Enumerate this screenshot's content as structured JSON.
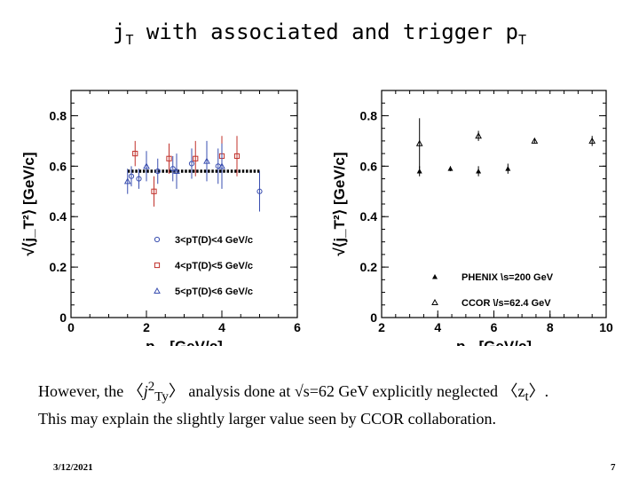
{
  "slide": {
    "title_pre": "j",
    "title_sub": "T",
    "title_mid": " with associated and trigger p",
    "title_sub2": "T",
    "caption": {
      "l1_a": "However, the ",
      "l1_open": "〈",
      "l1_j": "j",
      "l1_sup": "2",
      "l1_sub": "Ty",
      "l1_close": "〉",
      "l1_b": " analysis  done at √s=62 GeV explicitly neglected ",
      "l1_open2": "〈",
      "l1_z": "z",
      "l1_zsub": "t",
      "l1_close2": "〉.",
      "l2": "This may explain the slightly larger value seen by CCOR collaboration."
    },
    "date": "3/12/2021",
    "page": "7"
  },
  "chart_data": [
    {
      "type": "scatter",
      "xlabel": "p_Ta [GeV/c]",
      "ylabel": "√⟨j_T²⟩ [GeV/c]",
      "xlim": [
        0,
        6
      ],
      "ylim": [
        0,
        0.9
      ],
      "xticks": [
        "0",
        "2",
        "4",
        "6"
      ],
      "yticks": [
        "0",
        "0.2",
        "0.4",
        "0.6",
        "0.8"
      ],
      "legend_position": "bottom-right",
      "series": [
        {
          "name": "3<pT(D)<4 GeV/c",
          "marker": "circle",
          "color": "#3a4fb0",
          "points": [
            [
              1.6,
              0.56
            ],
            [
              1.8,
              0.55
            ],
            [
              2.3,
              0.58
            ],
            [
              2.7,
              0.59
            ],
            [
              3.2,
              0.61
            ],
            [
              3.9,
              0.6
            ],
            [
              5.0,
              0.5
            ]
          ],
          "err": [
            0.04,
            0.04,
            0.05,
            0.05,
            0.06,
            0.07,
            0.08
          ]
        },
        {
          "name": "4<pT(D)<5 GeV/c",
          "marker": "square",
          "color": "#c0302a",
          "points": [
            [
              1.7,
              0.65
            ],
            [
              2.2,
              0.5
            ],
            [
              2.6,
              0.63
            ],
            [
              3.3,
              0.63
            ],
            [
              4.0,
              0.64
            ],
            [
              4.4,
              0.64
            ]
          ],
          "err": [
            0.05,
            0.06,
            0.06,
            0.07,
            0.08,
            0.08
          ]
        },
        {
          "name": "5<pT(D)<6 GeV/c",
          "marker": "triangle",
          "color": "#3a4fb0",
          "points": [
            [
              1.5,
              0.54
            ],
            [
              2.0,
              0.6
            ],
            [
              2.8,
              0.58
            ],
            [
              3.6,
              0.62
            ],
            [
              4.0,
              0.6
            ]
          ],
          "err": [
            0.05,
            0.06,
            0.07,
            0.08,
            0.09
          ]
        }
      ],
      "fit": {
        "x": [
          1.5,
          5.0
        ],
        "y": 0.58
      }
    },
    {
      "type": "scatter",
      "xlabel": "p_Tt [GeV/c]",
      "ylabel": "√⟨j_T²⟩ [GeV/c]",
      "xlim": [
        2,
        10
      ],
      "ylim": [
        0,
        0.9
      ],
      "xticks": [
        "2",
        "4",
        "6",
        "8",
        "10"
      ],
      "yticks": [
        "0",
        "0.2",
        "0.4",
        "0.6",
        "0.8"
      ],
      "legend_position": "bottom-right",
      "series": [
        {
          "name": "PHENIX \\s=200 GeV",
          "marker": "filled-triangle",
          "color": "#000000",
          "points": [
            [
              3.35,
              0.58
            ],
            [
              4.45,
              0.59
            ],
            [
              5.45,
              0.58
            ],
            [
              6.5,
              0.59
            ]
          ],
          "err": [
            0.02,
            0.01,
            0.02,
            0.02
          ]
        },
        {
          "name": "CCOR \\/s=62.4 GeV",
          "marker": "open-triangle",
          "color": "#000000",
          "points": [
            [
              3.35,
              0.69
            ],
            [
              5.45,
              0.72
            ],
            [
              7.45,
              0.7
            ],
            [
              9.5,
              0.7
            ]
          ],
          "err": [
            0.1,
            0.02,
            0.01,
            0.02
          ]
        }
      ]
    }
  ]
}
